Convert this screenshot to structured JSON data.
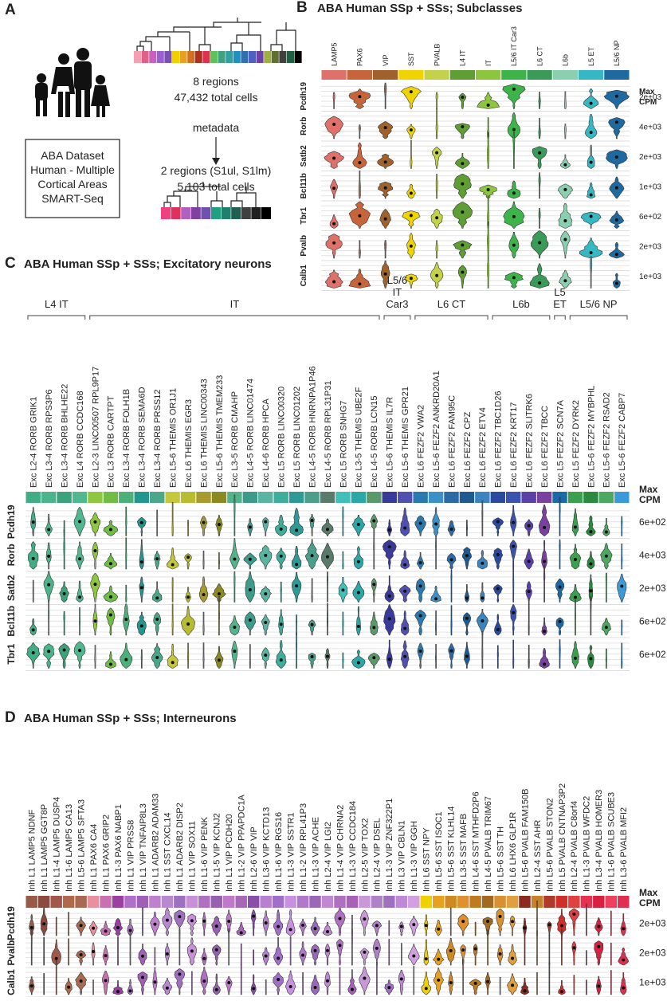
{
  "panel_a": {
    "letter": "A",
    "top_regions": "8 regions",
    "top_cells": "47,432 total cells",
    "arrow_label": "metadata",
    "bottom_regions": "2 regions (S1ul, S1lm)",
    "bottom_cells": "5,103 total cells",
    "dataset_lines": [
      "ABA Dataset",
      "Human - Multiple",
      "Cortical Areas",
      "SMART-Seq"
    ]
  },
  "panel_b": {
    "letter": "B",
    "title": "ABA Human SSp + SSs; Subclasses",
    "max_header": [
      "Max",
      "CPM"
    ],
    "columns": [
      {
        "name": "LAMP5",
        "color": "#e0706a"
      },
      {
        "name": "PAX6",
        "color": "#c8643a"
      },
      {
        "name": "VIP",
        "color": "#a0622a"
      },
      {
        "name": "SST",
        "color": "#f0d400"
      },
      {
        "name": "PVALB",
        "color": "#c4d24a"
      },
      {
        "name": "L4 IT",
        "color": "#5f9e32"
      },
      {
        "name": "IT",
        "color": "#8cc63c"
      },
      {
        "name": "L5/6 IT Car3",
        "color": "#3cb44a"
      },
      {
        "name": "L6 CT",
        "color": "#3a9a58"
      },
      {
        "name": "L6b",
        "color": "#8ad0b0"
      },
      {
        "name": "L5 ET",
        "color": "#36b8c4"
      },
      {
        "name": "L5/6 NP",
        "color": "#1e6aa0"
      }
    ],
    "rows": [
      {
        "gene": "Pcdh19",
        "max_cpm": "2e+03"
      },
      {
        "gene": "Rorb",
        "max_cpm": "4e+03"
      },
      {
        "gene": "Satb2",
        "max_cpm": "2e+03"
      },
      {
        "gene": "Bcl11b",
        "max_cpm": "1e+03"
      },
      {
        "gene": "Tbr1",
        "max_cpm": "6e+02"
      },
      {
        "gene": "Pvalb",
        "max_cpm": "2e+03"
      },
      {
        "gene": "Calb1",
        "max_cpm": "1e+03"
      }
    ]
  },
  "panel_c": {
    "letter": "C",
    "title": "ABA Human SSp + SSs; Excitatory neurons",
    "max_header": [
      "Max",
      "CPM"
    ],
    "groups": [
      {
        "label": [
          "L4 IT"
        ],
        "columns": [
          {
            "name": "Exc L2-4 RORB GRIK1",
            "color": "#3fae84"
          },
          {
            "name": "Exc L3-4 RORB RPS3P6",
            "color": "#4ab58a"
          },
          {
            "name": "Exc L3-4 RORB BHLHE22",
            "color": "#3aa37c"
          },
          {
            "name": "Exc L4 RORB CCDC168",
            "color": "#50b890"
          }
        ]
      },
      {
        "label": [
          "IT"
        ],
        "columns": [
          {
            "name": "Exc L2-3 LINC00507 RPL9P17",
            "color": "#8fc63f"
          },
          {
            "name": "Exc L3 RORB CARTPT",
            "color": "#6fbd45"
          },
          {
            "name": "Exc L3-4 RORB FOLH1B",
            "color": "#4bb07a"
          },
          {
            "name": "Exc L3-4 RORB SEMA6D",
            "color": "#22968f"
          },
          {
            "name": "Exc L3-4 RORB PRSS12",
            "color": "#4aa88a"
          },
          {
            "name": "Exc L5-6 THEMIS OR1J1",
            "color": "#c4c83a"
          },
          {
            "name": "Exc L6 THEMIS EGR3",
            "color": "#b8bc30"
          },
          {
            "name": "Exc L6 THEMIS LINC00343",
            "color": "#a89a2c"
          },
          {
            "name": "Exc L5-6 THEMIS TMEM233",
            "color": "#8a8a20"
          },
          {
            "name": "Exc L3-5 RORB CMAHP",
            "color": "#53b38a"
          },
          {
            "name": "Exc L4-5 RORB LINC01474",
            "color": "#3c9c8c"
          },
          {
            "name": "Exc L4-6 RORB HPCA",
            "color": "#57b5a2"
          },
          {
            "name": "Exc L5 RORB LINC00320",
            "color": "#3dae9a"
          },
          {
            "name": "Exc L5 RORB LINC01202",
            "color": "#2d9a96"
          },
          {
            "name": "Exc L4-5 RORB HNRNPA1P46",
            "color": "#4a9e8a"
          },
          {
            "name": "Exc L4-5 RORB RPL31P31",
            "color": "#5a7a6a"
          },
          {
            "name": "Exc L5 RORB SNHG7",
            "color": "#3fc0b8"
          },
          {
            "name": "Exc L3-5 THEMIS UBE2F",
            "color": "#2aa8a8"
          },
          {
            "name": "Exc L4-5 RORB LCN15",
            "color": "#5a9a6a"
          }
        ]
      },
      {
        "label": [
          "L5/6",
          "IT",
          "Car3"
        ],
        "columns": [
          {
            "name": "Exc L5-6 THEMIS IL7R",
            "color": "#3a3a9a"
          },
          {
            "name": "Exc L5-6 THEMIS GPR21",
            "color": "#5050b0"
          }
        ]
      },
      {
        "label": [
          "L6 CT"
        ],
        "columns": [
          {
            "name": "Exc L6 FEZF2 VWA2",
            "color": "#2a7ab0"
          },
          {
            "name": "Exc L5-6 FEZF2 ANKRD20A1",
            "color": "#3c90c8"
          },
          {
            "name": "Exc L6 FEZF2 FAM95C",
            "color": "#2a6aa8"
          },
          {
            "name": "Exc L6 FEZF2 CPZ",
            "color": "#1e5a90"
          },
          {
            "name": "Exc L6 FEZF2 ETV4",
            "color": "#3a84c0"
          }
        ]
      },
      {
        "label": [
          "L6b"
        ],
        "columns": [
          {
            "name": "Exc L6 FEZF2 TBC1D26",
            "color": "#2a4aa0"
          },
          {
            "name": "Exc L6 FEZF2 KRT17",
            "color": "#3a52b0"
          },
          {
            "name": "Exc L6 FEZF2 SLITRK6",
            "color": "#5a40a8"
          },
          {
            "name": "Exc L6 FEZF2 TBCC",
            "color": "#7a40a0"
          }
        ]
      },
      {
        "label": [
          "L5",
          "ET"
        ],
        "columns": [
          {
            "name": "Exc L5 FEZF2 SCN7A",
            "color": "#1a6aa8"
          }
        ]
      },
      {
        "label": [
          "L5/6 NP"
        ],
        "columns": [
          {
            "name": "Exc L5 FEZF2 DYRK2",
            "color": "#3aa050"
          },
          {
            "name": "Exc L5-6 FEZF2 MYBPHL",
            "color": "#2a8a40"
          },
          {
            "name": "Exc L5-6 FEZF2 RSAD2",
            "color": "#4aa860"
          },
          {
            "name": "Exc L5-6 FEZF2 CABP7",
            "color": "#3a9ad8"
          }
        ]
      }
    ],
    "rows": [
      {
        "gene": "Pcdh19",
        "max_cpm": "6e+02"
      },
      {
        "gene": "Rorb",
        "max_cpm": "4e+03"
      },
      {
        "gene": "Satb2",
        "max_cpm": "2e+03"
      },
      {
        "gene": "Bcl11b",
        "max_cpm": "6e+02"
      },
      {
        "gene": "Tbr1",
        "max_cpm": "6e+02"
      }
    ]
  },
  "panel_d": {
    "letter": "D",
    "title": "ABA Human SSp + SSs; Interneurons",
    "max_header": [
      "Max",
      "CPM"
    ],
    "columns": [
      {
        "name": "Inh L1 LAMP5 NDNF",
        "color": "#9a5a4a"
      },
      {
        "name": "Inh L1 LAMP5 GGT8P",
        "color": "#8a4a40"
      },
      {
        "name": "Inh L1-4 LAMP5 DUSP4",
        "color": "#a0584a"
      },
      {
        "name": "Inh L1-6 LAMP5 CA13",
        "color": "#b06a4a"
      },
      {
        "name": "Inh L5-6 LAMP5 SFTA3",
        "color": "#a86a50"
      },
      {
        "name": "Inh L1 PAX6 CA4",
        "color": "#e890a0"
      },
      {
        "name": "Inh L1 PAX6 GRIP2",
        "color": "#c870b0"
      },
      {
        "name": "Inh L1-3 PAX6 NABP1",
        "color": "#9a40a0"
      },
      {
        "name": "Inh L1 VIP PRSS8",
        "color": "#b070c8"
      },
      {
        "name": "Inh L1 VIP TNFAIP8L3",
        "color": "#a060b8"
      },
      {
        "name": "Inh L1 ADARB2 ADAM33",
        "color": "#c080d0"
      },
      {
        "name": "Inh L1 SST CXCL14",
        "color": "#b888d0"
      },
      {
        "name": "Inh L1 ADARB2 DISP2",
        "color": "#a070c0"
      },
      {
        "name": "Inh L1 VIP SOX11",
        "color": "#c890d8"
      },
      {
        "name": "Inh L1-6 VIP PENK",
        "color": "#b070c0"
      },
      {
        "name": "Inh L1-5 VIP KCNJ2",
        "color": "#9860b0"
      },
      {
        "name": "Inh L1 VIP PCDH20",
        "color": "#c078c8"
      },
      {
        "name": "Inh L1-2 VIP PPAPDC1A",
        "color": "#a868b8"
      },
      {
        "name": "Inh L2-6 VIP VIP",
        "color": "#8850a8"
      },
      {
        "name": "Inh L3-6 VIP KCTD13",
        "color": "#b880d0"
      },
      {
        "name": "Inh L1-6 VIP RGS16",
        "color": "#a070c8"
      },
      {
        "name": "Inh L1-3 VIP SSTR1",
        "color": "#c890e0"
      },
      {
        "name": "Inh L1-2 VIP RPL41P3",
        "color": "#b078c8"
      },
      {
        "name": "Inh L1-3 VIP ACHE",
        "color": "#9a68b8"
      },
      {
        "name": "Inh L2-4 VIP LGI2",
        "color": "#c088d0"
      },
      {
        "name": "Inh L1-4 VIP CHRNA2",
        "color": "#b070c0"
      },
      {
        "name": "Inh L1-3 VIP CCDC184",
        "color": "#a860b8"
      },
      {
        "name": "Inh L2-5 VIP TOX2",
        "color": "#c898d8"
      },
      {
        "name": "Inh L2-4 VIP DSEL",
        "color": "#b080c8"
      },
      {
        "name": "Inh L1-3 VIP ZNF322P1",
        "color": "#a070c0"
      },
      {
        "name": "Inh L3 VIP CBLN1",
        "color": "#c088d8"
      },
      {
        "name": "Inh L1-3 VIP GGH",
        "color": "#d0a0e0"
      },
      {
        "name": "Inh L6 SST NPY",
        "color": "#f0d000"
      },
      {
        "name": "Inh L5-6 SST ISOC1",
        "color": "#e8a020"
      },
      {
        "name": "Inh L5-6 SST KLHL14",
        "color": "#d08a20"
      },
      {
        "name": "Inh L3-5 SST MAFB",
        "color": "#e09030"
      },
      {
        "name": "Inh L4-6 SST MTHFD2P6",
        "color": "#c07a20"
      },
      {
        "name": "Inh L4-5 PVALB TRIM67",
        "color": "#a06a20"
      },
      {
        "name": "Inh L5-6 SST TH",
        "color": "#d89030"
      },
      {
        "name": "Inh L6 LHX6 GLP1R",
        "color": "#e0a040"
      },
      {
        "name": "Inh L5-6 PVALB FAM150B",
        "color": "#8a2a20"
      },
      {
        "name": "Inh L2-4 SST AHR",
        "color": "#c8802a"
      },
      {
        "name": "Inh L5-6 PVALB STON2",
        "color": "#b03a2a"
      },
      {
        "name": "Inh L5 PVALB CNTNAP3P2",
        "color": "#d0302a"
      },
      {
        "name": "Inh L2-4 PVALB C8orf4",
        "color": "#e04040"
      },
      {
        "name": "Inh L1-3 PVALB WFDC2",
        "color": "#e83050"
      },
      {
        "name": "Inh L3-4 PVALB HOMER3",
        "color": "#d82040"
      },
      {
        "name": "Inh L1-6 PVALB SCUBE3",
        "color": "#f04060"
      },
      {
        "name": "Inh L3-6 PVALB MFI2",
        "color": "#e03050"
      }
    ],
    "rows": [
      {
        "gene": "Pcdh19",
        "max_cpm": "2e+03"
      },
      {
        "gene": "Pvalb",
        "max_cpm": "2e+03"
      },
      {
        "gene": "Calb1",
        "max_cpm": "1e+03"
      }
    ]
  }
}
